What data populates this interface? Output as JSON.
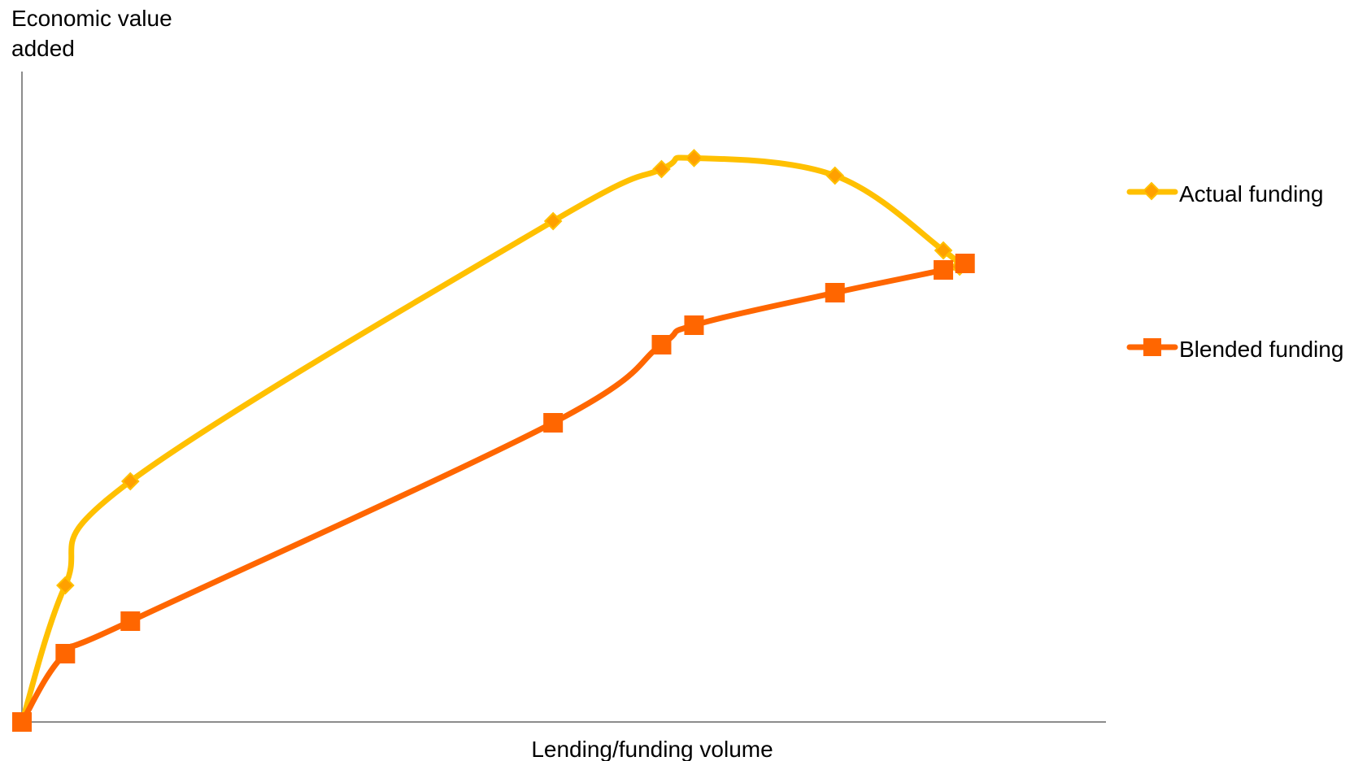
{
  "chart_data": {
    "type": "line",
    "title": "",
    "ylabel": [
      "Economic value",
      "added"
    ],
    "xlabel": "Lending/funding volume",
    "xlim": [
      0,
      100
    ],
    "ylim": [
      0,
      100
    ],
    "grid": false,
    "legend_position": "right",
    "series": [
      {
        "name": "Actual funding",
        "color": "#FFC000",
        "marker": "diamond",
        "marker_color": "#FFA000",
        "x": [
          0,
          4,
          10,
          49,
          59,
          62,
          75,
          85,
          86.5
        ],
        "y": [
          0,
          21,
          37,
          77,
          85,
          86.7,
          84,
          72.5,
          70
        ]
      },
      {
        "name": "Blended funding",
        "color": "#FF6600",
        "marker": "square",
        "marker_color": "#FF6600",
        "x": [
          0,
          4,
          10,
          49,
          59,
          62,
          75,
          85,
          87
        ],
        "y": [
          0,
          10.5,
          15.5,
          46,
          58,
          61,
          66,
          69.5,
          70.5
        ]
      }
    ]
  }
}
